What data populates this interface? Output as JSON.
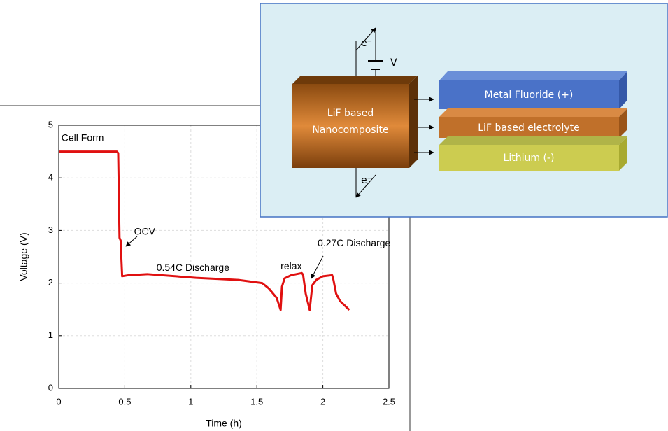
{
  "chart_data": {
    "type": "line",
    "xlabel": "Time (h)",
    "ylabel": "Voltage (V)",
    "xlim": [
      0,
      2.5
    ],
    "xticks": [
      0,
      0.5,
      1,
      1.5,
      2,
      2.5
    ],
    "ylim": [
      0,
      5
    ],
    "yticks": [
      0,
      1,
      2,
      3,
      4,
      5
    ],
    "grid": true,
    "series": [
      {
        "color": "#e01010",
        "x": [
          0,
          0.44,
          0.45,
          0.46,
          0.47,
          0.47,
          0.48,
          0.53,
          0.67,
          1.04,
          1.36,
          1.54,
          1.59,
          1.65,
          1.68,
          1.69,
          1.71,
          1.76,
          1.84,
          1.85,
          1.87,
          1.9,
          1.92,
          1.95,
          2.0,
          2.07,
          2.08,
          2.1,
          2.13,
          2.2
        ],
        "y": [
          4.5,
          4.5,
          4.47,
          2.86,
          2.8,
          2.7,
          2.13,
          2.15,
          2.17,
          2.1,
          2.06,
          2.0,
          1.9,
          1.72,
          1.49,
          1.93,
          2.09,
          2.15,
          2.19,
          2.16,
          1.8,
          1.49,
          1.96,
          2.06,
          2.13,
          2.15,
          2.06,
          1.8,
          1.66,
          1.49
        ]
      }
    ],
    "annotations": [
      {
        "text": "Cell Form",
        "x": 0.02,
        "y": 4.75
      },
      {
        "text": "OCV",
        "x": 0.57,
        "y": 2.97
      },
      {
        "text": "0.54C Discharge",
        "x": 0.74,
        "y": 2.28
      },
      {
        "text": "relax",
        "x": 1.68,
        "y": 2.31
      },
      {
        "text": "0.27C Discharge",
        "x": 1.96,
        "y": 2.75
      }
    ]
  },
  "inset": {
    "electron_top": "e⁻",
    "voltage": "V",
    "electron_bottom": "e⁻",
    "nanocomposite": [
      "LiF based",
      "Nanocomposite"
    ],
    "layers": [
      "Metal Fluoride (+)",
      "LiF based electrolyte",
      "Lithium (-)"
    ]
  }
}
